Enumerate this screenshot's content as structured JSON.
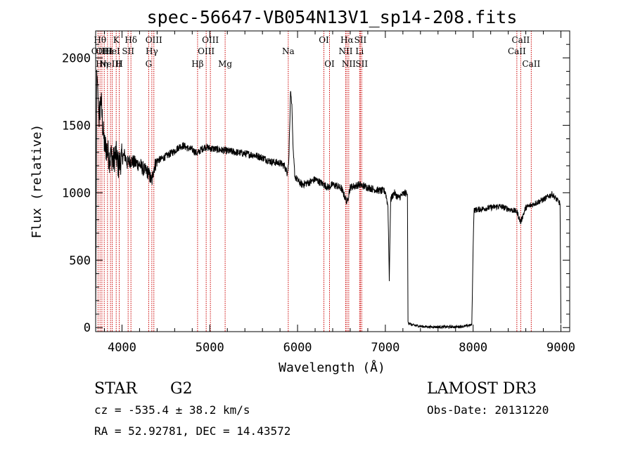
{
  "chart_data": {
    "type": "line",
    "title": "spec-56647-VB054N13V1_sp14-208.fits",
    "xlabel": "Wavelength (Å)",
    "ylabel": "Flux (relative)",
    "xlim": [
      3700,
      9100
    ],
    "ylim": [
      -30,
      2200
    ],
    "xticks": [
      4000,
      5000,
      6000,
      7000,
      8000,
      9000
    ],
    "yticks": [
      0,
      500,
      1000,
      1500,
      2000
    ],
    "spectrum_anchors": [
      [
        3700,
        50
      ],
      [
        3705,
        700
      ],
      [
        3712,
        1900
      ],
      [
        3725,
        1750
      ],
      [
        3740,
        1550
      ],
      [
        3760,
        1700
      ],
      [
        3780,
        1500
      ],
      [
        3800,
        1350
      ],
      [
        3830,
        1320
      ],
      [
        3860,
        1250
      ],
      [
        3880,
        1280
      ],
      [
        3900,
        1230
      ],
      [
        3930,
        1290
      ],
      [
        3960,
        1200
      ],
      [
        3990,
        1250
      ],
      [
        4030,
        1280
      ],
      [
        4060,
        1220
      ],
      [
        4100,
        1240
      ],
      [
        4150,
        1220
      ],
      [
        4200,
        1210
      ],
      [
        4250,
        1170
      ],
      [
        4300,
        1150
      ],
      [
        4340,
        1080
      ],
      [
        4360,
        1180
      ],
      [
        4400,
        1240
      ],
      [
        4450,
        1250
      ],
      [
        4500,
        1270
      ],
      [
        4550,
        1290
      ],
      [
        4600,
        1310
      ],
      [
        4650,
        1340
      ],
      [
        4700,
        1350
      ],
      [
        4750,
        1330
      ],
      [
        4800,
        1320
      ],
      [
        4860,
        1290
      ],
      [
        4900,
        1320
      ],
      [
        4950,
        1340
      ],
      [
        5000,
        1330
      ],
      [
        5100,
        1320
      ],
      [
        5200,
        1310
      ],
      [
        5300,
        1300
      ],
      [
        5400,
        1290
      ],
      [
        5500,
        1280
      ],
      [
        5600,
        1260
      ],
      [
        5700,
        1230
      ],
      [
        5800,
        1220
      ],
      [
        5850,
        1200
      ],
      [
        5880,
        1150
      ],
      [
        5900,
        1230
      ],
      [
        5920,
        1760
      ],
      [
        5935,
        1650
      ],
      [
        5950,
        1300
      ],
      [
        5970,
        1120
      ],
      [
        6000,
        1090
      ],
      [
        6050,
        1060
      ],
      [
        6100,
        1070
      ],
      [
        6150,
        1080
      ],
      [
        6200,
        1100
      ],
      [
        6250,
        1080
      ],
      [
        6300,
        1060
      ],
      [
        6350,
        1040
      ],
      [
        6400,
        1060
      ],
      [
        6450,
        1050
      ],
      [
        6500,
        1030
      ],
      [
        6563,
        930
      ],
      [
        6600,
        1040
      ],
      [
        6700,
        1060
      ],
      [
        6800,
        1040
      ],
      [
        6900,
        1020
      ],
      [
        7000,
        1010
      ],
      [
        7030,
        900
      ],
      [
        7045,
        350
      ],
      [
        7060,
        950
      ],
      [
        7100,
        1000
      ],
      [
        7150,
        960
      ],
      [
        7200,
        990
      ],
      [
        7240,
        1000
      ],
      [
        7252,
        980
      ],
      [
        7258,
        40
      ],
      [
        7300,
        20
      ],
      [
        7400,
        10
      ],
      [
        7500,
        5
      ],
      [
        7600,
        5
      ],
      [
        7700,
        5
      ],
      [
        7800,
        5
      ],
      [
        7900,
        10
      ],
      [
        7985,
        20
      ],
      [
        8000,
        600
      ],
      [
        8010,
        870
      ],
      [
        8100,
        880
      ],
      [
        8200,
        890
      ],
      [
        8300,
        900
      ],
      [
        8400,
        880
      ],
      [
        8500,
        860
      ],
      [
        8540,
        780
      ],
      [
        8600,
        890
      ],
      [
        8700,
        920
      ],
      [
        8800,
        950
      ],
      [
        8900,
        990
      ],
      [
        8990,
        920
      ],
      [
        9000,
        30
      ]
    ],
    "emission_lines": [
      {
        "wave": 3727,
        "label": "OII",
        "row": 2
      },
      {
        "wave": 3750,
        "label": "Hθ",
        "row": 1
      },
      {
        "wave": 3771,
        "label": "Hη",
        "row": 3
      },
      {
        "wave": 3798,
        "label": "OIII",
        "row": 2
      },
      {
        "wave": 3835,
        "label": "Hε",
        "row": 2
      },
      {
        "wave": 3869,
        "label": "NeIII",
        "row": 3
      },
      {
        "wave": 3889,
        "label": "HeI",
        "row": 2
      },
      {
        "wave": 3934,
        "label": "K",
        "row": 1
      },
      {
        "wave": 3969,
        "label": "H",
        "row": 3
      },
      {
        "wave": 4070,
        "label": "SII",
        "row": 2
      },
      {
        "wave": 4102,
        "label": "Hδ",
        "row": 1
      },
      {
        "wave": 4304,
        "label": "G",
        "row": 3
      },
      {
        "wave": 4340,
        "label": "Hγ",
        "row": 2
      },
      {
        "wave": 4363,
        "label": "OIII",
        "row": 1
      },
      {
        "wave": 4861,
        "label": "Hβ",
        "row": 3
      },
      {
        "wave": 4959,
        "label": "OIII",
        "row": 2
      },
      {
        "wave": 5007,
        "label": "OIII",
        "row": 1
      },
      {
        "wave": 5175,
        "label": "Mg",
        "row": 3
      },
      {
        "wave": 5894,
        "label": "Na",
        "row": 2
      },
      {
        "wave": 6300,
        "label": "OI",
        "row": 1
      },
      {
        "wave": 6364,
        "label": "OI",
        "row": 3
      },
      {
        "wave": 6548,
        "label": "NII",
        "row": 2
      },
      {
        "wave": 6563,
        "label": "Hα",
        "row": 1
      },
      {
        "wave": 6583,
        "label": "NII",
        "row": 3
      },
      {
        "wave": 6707,
        "label": "Li",
        "row": 2
      },
      {
        "wave": 6716,
        "label": "SII",
        "row": 1
      },
      {
        "wave": 6731,
        "label": "SII",
        "row": 3
      },
      {
        "wave": 8498,
        "label": "CaII",
        "row": 2
      },
      {
        "wave": 8542,
        "label": "CaII",
        "row": 1
      },
      {
        "wave": 8662,
        "label": "CaII",
        "row": 3
      }
    ]
  },
  "info": {
    "object_class": "STAR",
    "subclass": "G2",
    "survey": "LAMOST DR3",
    "cz": "cz = -535.4 ± 38.2 km/s",
    "obs_date": "Obs-Date: 20131220",
    "coords": "RA =  52.92781, DEC =  14.43572"
  },
  "colors": {
    "line_marker": "#cc0000",
    "spectrum": "#000000"
  }
}
